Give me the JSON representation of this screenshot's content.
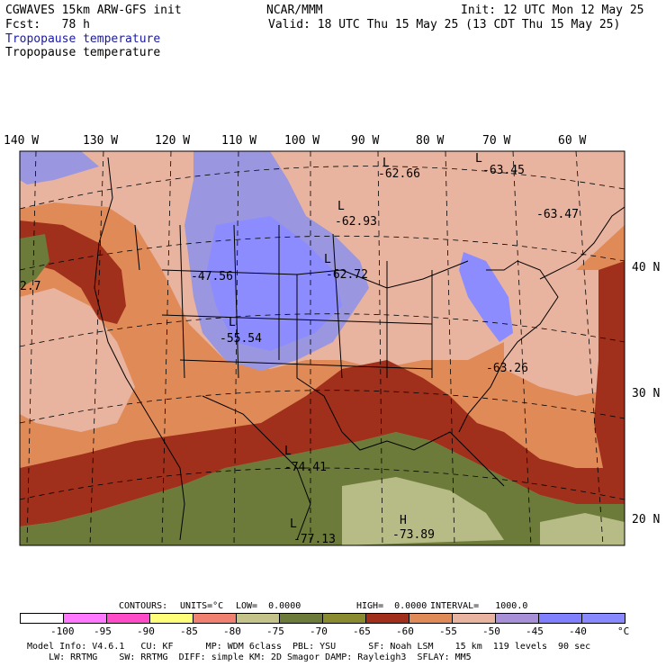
{
  "header": {
    "title": "CGWAVES 15km ARW-GFS init",
    "org": "NCAR/MMM",
    "init": "Init: 12 UTC Mon 12 May 25",
    "fcst": "Fcst:   78 h",
    "valid": "Valid: 18 UTC Thu 15 May 25 (13 CDT Thu 15 May 25)",
    "field1": "Tropopause temperature",
    "field2": "Tropopause temperature"
  },
  "axes": {
    "lon_labels": [
      "140 W",
      "130 W",
      "120 W",
      "110 W",
      "100 W",
      "90 W",
      "80 W",
      "70 W",
      "60 W"
    ],
    "lat_labels": [
      "40 N",
      "30 N",
      "20 N"
    ]
  },
  "map_labels": [
    {
      "mark": "L",
      "value": "-62.66"
    },
    {
      "mark": "L",
      "value": "-63.45"
    },
    {
      "mark": "L",
      "value": "-62.93"
    },
    {
      "mark": "",
      "value": "-63.47"
    },
    {
      "mark": "",
      "value": "-47.56"
    },
    {
      "mark": "L",
      "value": "-62.72"
    },
    {
      "mark": "L",
      "value": "-55.54"
    },
    {
      "mark": "",
      "value": "-63.26"
    },
    {
      "mark": "L",
      "value": "-74.41"
    },
    {
      "mark": "L",
      "value": "-77.13"
    },
    {
      "mark": "H",
      "value": "-73.89"
    },
    {
      "mark": "",
      "value": "2.7"
    }
  ],
  "contours": {
    "label": "CONTOURS:",
    "units": "UNITS=°C",
    "low": "LOW=  0.0000",
    "high": "HIGH=  0.0000",
    "interval": "INTERVAL=   1000.0"
  },
  "legend": {
    "colors": [
      "#ffffff",
      "#ff78ff",
      "#ff4bc8",
      "#ffff7a",
      "#f08070",
      "#c4c48a",
      "#6c7a3a",
      "#8a8a30",
      "#a0301c",
      "#e08a58",
      "#e8b4a0",
      "#a890d8",
      "#8080ff",
      "#8888ff"
    ],
    "ticks": [
      "-100",
      "-95",
      "-90",
      "-85",
      "-80",
      "-75",
      "-70",
      "-65",
      "-60",
      "-55",
      "-50",
      "-45",
      "-40",
      "°C"
    ]
  },
  "footer": {
    "line1": "Model Info: V4.6.1   CU: KF      MP: WDM 6class  PBL: YSU      SF: Noah LSM    15 km  119 levels  90 sec",
    "line2": "    LW: RRTMG    SW: RRTMG  DIFF: simple KM: 2D Smagor DAMP: Rayleigh3  SFLAY: MM5"
  }
}
